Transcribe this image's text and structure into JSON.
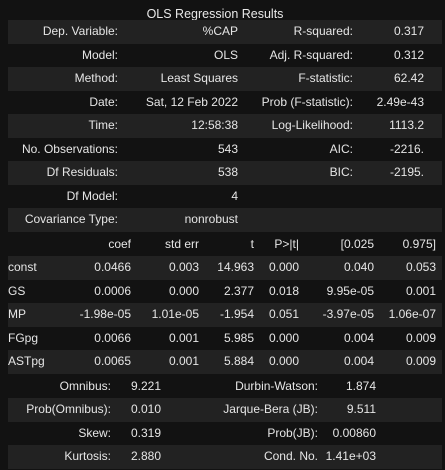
{
  "title": "OLS Regression Results",
  "summary": [
    [
      "Dep. Variable:",
      "%CAP",
      "R-squared:",
      "0.317"
    ],
    [
      "Model:",
      "OLS",
      "Adj. R-squared:",
      "0.312"
    ],
    [
      "Method:",
      "Least Squares",
      "F-statistic:",
      "62.42"
    ],
    [
      "Date:",
      "Sat, 12 Feb 2022",
      "Prob (F-statistic):",
      "2.49e-43"
    ],
    [
      "Time:",
      "12:58:38",
      "Log-Likelihood:",
      "1113.2"
    ],
    [
      "No. Observations:",
      "543",
      "AIC:",
      "-2216."
    ],
    [
      "Df Residuals:",
      "538",
      "BIC:",
      "-2195."
    ],
    [
      "Df Model:",
      "4",
      "",
      ""
    ],
    [
      "Covariance Type:",
      "nonrobust",
      "",
      ""
    ]
  ],
  "coef_header": [
    "",
    "coef",
    "std err",
    "t",
    "P>|t|",
    "[0.025",
    "0.975]"
  ],
  "coef_rows": [
    [
      "const",
      "0.0466",
      "0.003",
      "14.963",
      "0.000",
      "0.040",
      "0.053"
    ],
    [
      "GS",
      "0.0006",
      "0.000",
      "2.377",
      "0.018",
      "9.95e-05",
      "0.001"
    ],
    [
      "MP",
      "-1.98e-05",
      "1.01e-05",
      "-1.954",
      "0.051",
      "-3.97e-05",
      "1.06e-07"
    ],
    [
      "FGpg",
      "0.0066",
      "0.001",
      "5.985",
      "0.000",
      "0.004",
      "0.009"
    ],
    [
      "ASTpg",
      "0.0065",
      "0.001",
      "5.884",
      "0.000",
      "0.004",
      "0.009"
    ]
  ],
  "diagnostics": [
    [
      "Omnibus:",
      "9.221",
      "Durbin-Watson:",
      "1.874"
    ],
    [
      "Prob(Omnibus):",
      "0.010",
      "Jarque-Bera (JB):",
      "9.511"
    ],
    [
      "Skew:",
      "0.319",
      "Prob(JB):",
      "0.00860"
    ],
    [
      "Kurtosis:",
      "2.880",
      "Cond. No.",
      "1.41e+03"
    ]
  ],
  "colors": {
    "background": "#121212",
    "stripe": "#222222",
    "text": "#e6e6e6"
  }
}
